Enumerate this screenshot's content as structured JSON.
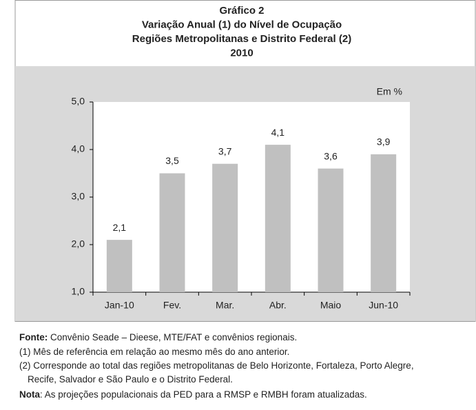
{
  "chart_data": {
    "type": "bar",
    "title_lines": [
      "Gráfico 2",
      "Variação Anual (1) do Nível de Ocupação",
      "Regiões Metropolitanas e Distrito Federal (2)",
      "2010"
    ],
    "unit_label": "Em %",
    "categories": [
      "Jan-10",
      "Fev.",
      "Mar.",
      "Abr.",
      "Maio",
      "Jun-10"
    ],
    "values": [
      2.1,
      3.5,
      3.7,
      4.1,
      3.6,
      3.9
    ],
    "value_labels": [
      "2,1",
      "3,5",
      "3,7",
      "4,1",
      "3,6",
      "3,9"
    ],
    "color": "#c0c0c0",
    "ylim": [
      1,
      5
    ],
    "yticks": [
      {
        "value": 1,
        "label": "1,0"
      },
      {
        "value": 2,
        "label": "2,0"
      },
      {
        "value": 3,
        "label": "3,0"
      },
      {
        "value": 4,
        "label": "4,0"
      },
      {
        "value": 5,
        "label": "5,0"
      }
    ],
    "grid": false
  },
  "notes": [
    {
      "label": "Fonte:",
      "text": " Convênio Seade – Dieese, MTE/FAT e convênios regionais."
    },
    {
      "text": "(1) Mês de referência em relação ao mesmo mês do ano anterior."
    },
    {
      "text": "(2) Corresponde ao total das regiões metropolitanas de Belo Horizonte, Fortaleza, Porto Alegre,"
    },
    {
      "text": "Recife, Salvador e São Paulo e o Distrito Federal."
    },
    {
      "label": "Nota",
      "text": ": As projeções populacionais da PED para a RMSP e RMBH foram atualizadas."
    }
  ]
}
